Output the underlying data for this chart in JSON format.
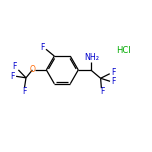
{
  "bg_color": "#ffffff",
  "bond_color": "#000000",
  "atom_color_F": "#0000cc",
  "atom_color_O": "#ff6600",
  "atom_color_N": "#0000cc",
  "atom_color_Cl": "#00aa00",
  "line_width": 0.9,
  "fig_size": [
    1.52,
    1.52
  ],
  "dpi": 100,
  "xlim": [
    0,
    10
  ],
  "ylim": [
    0,
    10
  ]
}
